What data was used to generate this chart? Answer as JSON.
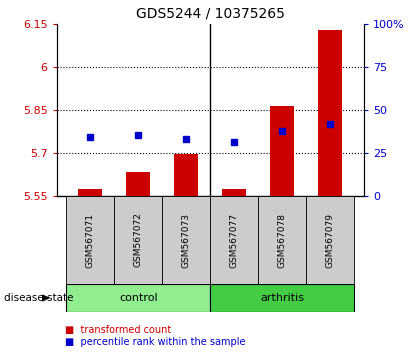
{
  "title": "GDS5244 / 10375265",
  "samples": [
    "GSM567071",
    "GSM567072",
    "GSM567073",
    "GSM567077",
    "GSM567078",
    "GSM567079"
  ],
  "groups": [
    "control",
    "control",
    "control",
    "arthritis",
    "arthritis",
    "arthritis"
  ],
  "red_bar_tops": [
    5.575,
    5.635,
    5.695,
    5.575,
    5.865,
    6.13
  ],
  "blue_square_y": [
    5.755,
    5.762,
    5.748,
    5.738,
    5.775,
    5.8
  ],
  "bar_bottom": 5.55,
  "ylim_left": [
    5.55,
    6.15
  ],
  "ylim_right": [
    0,
    100
  ],
  "yticks_left": [
    5.55,
    5.7,
    5.85,
    6.0,
    6.15
  ],
  "yticks_right": [
    0,
    25,
    50,
    75,
    100
  ],
  "ytick_labels_left": [
    "5.55",
    "5.7",
    "5.85",
    "6",
    "6.15"
  ],
  "ytick_labels_right": [
    "0",
    "25",
    "50",
    "75",
    "100%"
  ],
  "grid_lines": [
    5.7,
    5.85,
    6.0
  ],
  "red_color": "#cc0000",
  "blue_color": "#0000cc",
  "control_color": "#90ee90",
  "arthritis_color": "#44cc44",
  "label_bg_color": "#cccccc",
  "legend_red": "transformed count",
  "legend_blue": "percentile rank within the sample",
  "disease_state_label": "disease state",
  "bar_width": 0.5,
  "figsize": [
    4.11,
    3.54
  ],
  "dpi": 100
}
